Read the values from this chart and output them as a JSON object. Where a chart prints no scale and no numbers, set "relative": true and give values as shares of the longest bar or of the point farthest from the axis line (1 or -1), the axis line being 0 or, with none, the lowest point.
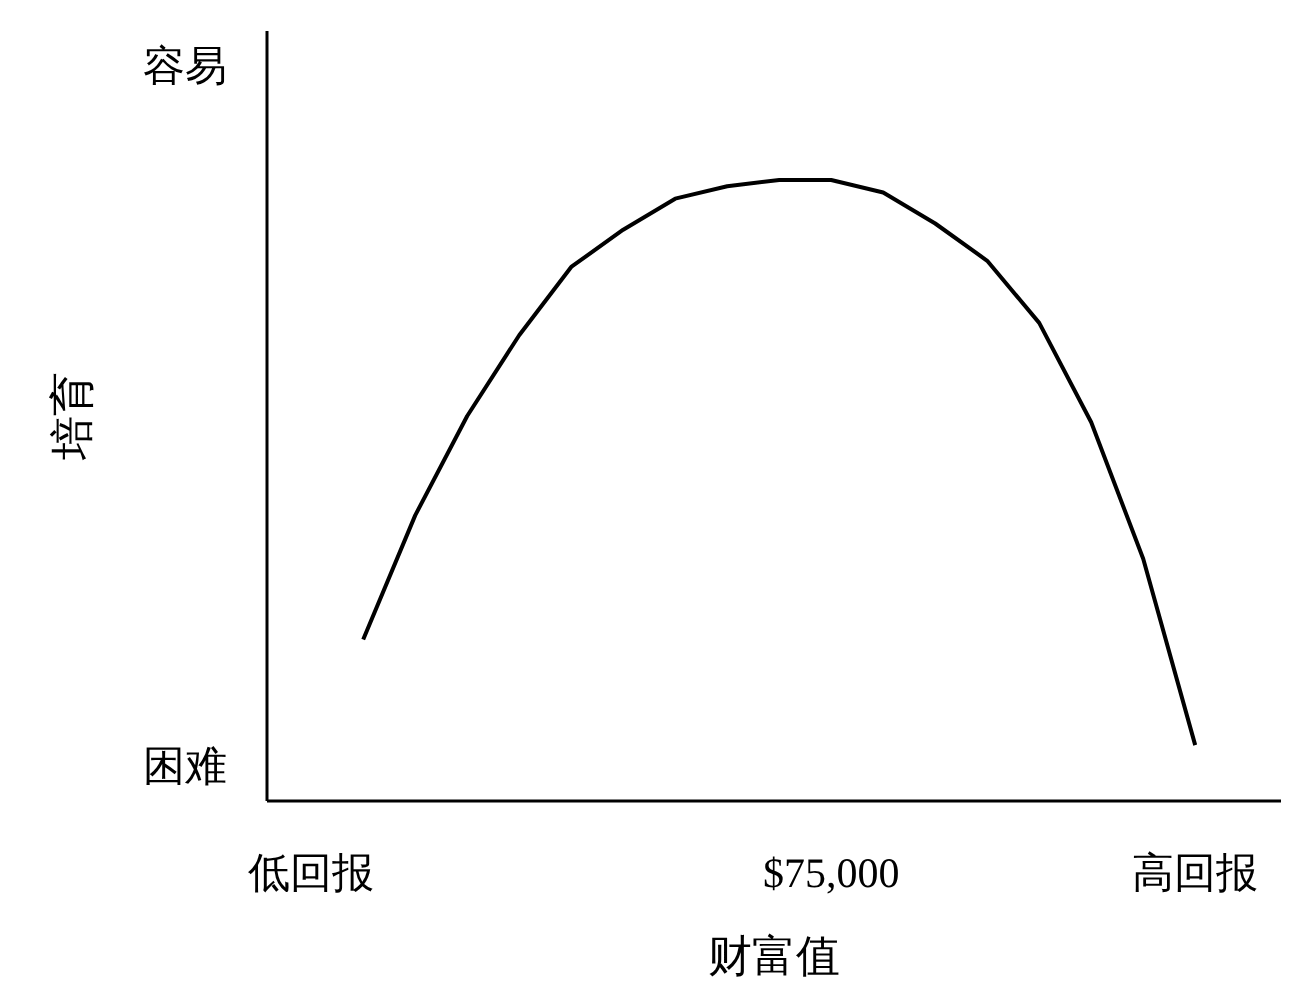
{
  "chart_data": {
    "type": "line",
    "xlabel": "财富值",
    "ylabel": "培育",
    "relative": true,
    "categories": [
      "低回报",
      null,
      null,
      null,
      null,
      null,
      null,
      null,
      null,
      null,
      "$75,000",
      null,
      null,
      null,
      null,
      null,
      null,
      "高回报",
      null
    ],
    "series": [
      {
        "color": "#000000",
        "values": [
          null,
          0.26,
          0.46,
          0.62,
          0.75,
          0.86,
          0.92,
          0.97,
          0.99,
          1.0,
          1.0,
          0.98,
          0.93,
          0.87,
          0.77,
          0.61,
          0.39,
          0.09,
          null
        ]
      }
    ],
    "annotations": [
      "容易",
      "困难"
    ],
    "grid": false,
    "line_style": "solid"
  }
}
